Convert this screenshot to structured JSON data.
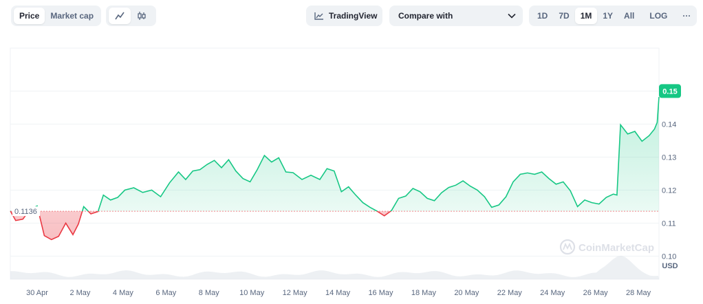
{
  "toolbar": {
    "type_tabs": [
      {
        "label": "Price",
        "active": true
      },
      {
        "label": "Market cap",
        "active": false
      }
    ],
    "chart_style_icons": [
      {
        "icon": "line-chart-icon",
        "active": true
      },
      {
        "icon": "candlestick-icon",
        "active": false
      }
    ],
    "tradingview_label": "TradingView",
    "compare_label": "Compare with",
    "ranges": [
      {
        "label": "1D",
        "active": false
      },
      {
        "label": "7D",
        "active": false
      },
      {
        "label": "1M",
        "active": true
      },
      {
        "label": "1Y",
        "active": false
      },
      {
        "label": "All",
        "active": false
      }
    ],
    "log_label": "LOG",
    "more_label": "···"
  },
  "watermark": "CoinMarketCap",
  "colors": {
    "up": "#16c784",
    "down": "#ea3943",
    "badge": "#16c784",
    "grid": "#eff2f5",
    "text": "#58667e"
  },
  "chart_data": {
    "type": "area",
    "currency_label": "USD",
    "baseline": 0.1136,
    "baseline_label": "0.1136",
    "current_price_label": "0.15",
    "ylim": [
      0.093,
      0.163
    ],
    "y_ticks": [
      0.1,
      0.11,
      0.12,
      0.13,
      0.14,
      0.15
    ],
    "y_tick_labels": [
      "0.10",
      "0.11",
      "0.12",
      "0.13",
      "0.14",
      "0.15"
    ],
    "x_start": "2024-04-28T18:00",
    "x_end": "2024-05-28T23:00",
    "x_ticks": [
      {
        "date": "2024-04-30",
        "label": "30 Apr"
      },
      {
        "date": "2024-05-02",
        "label": "2 May"
      },
      {
        "date": "2024-05-04",
        "label": "4 May"
      },
      {
        "date": "2024-05-06",
        "label": "6 May"
      },
      {
        "date": "2024-05-08",
        "label": "8 May"
      },
      {
        "date": "2024-05-10",
        "label": "10 May"
      },
      {
        "date": "2024-05-12",
        "label": "12 May"
      },
      {
        "date": "2024-05-14",
        "label": "14 May"
      },
      {
        "date": "2024-05-16",
        "label": "16 May"
      },
      {
        "date": "2024-05-18",
        "label": "18 May"
      },
      {
        "date": "2024-05-20",
        "label": "20 May"
      },
      {
        "date": "2024-05-22",
        "label": "22 May"
      },
      {
        "date": "2024-05-24",
        "label": "24 May"
      },
      {
        "date": "2024-05-26",
        "label": "26 May"
      },
      {
        "date": "2024-05-28",
        "label": "28 May"
      }
    ],
    "series": [
      {
        "points": [
          [
            "2024-04-28T18:00",
            0.1137
          ],
          [
            "2024-04-29T00:00",
            0.1108
          ],
          [
            "2024-04-29T08:00",
            0.1112
          ],
          [
            "2024-04-29T16:00",
            0.1141
          ],
          [
            "2024-04-30T00:00",
            0.1152
          ],
          [
            "2024-04-30T08:00",
            0.1062
          ],
          [
            "2024-04-30T16:00",
            0.105
          ],
          [
            "2024-05-01T00:00",
            0.106
          ],
          [
            "2024-05-01T08:00",
            0.11
          ],
          [
            "2024-05-01T16:00",
            0.1065
          ],
          [
            "2024-05-01T22:00",
            0.1097
          ],
          [
            "2024-05-02T04:00",
            0.115
          ],
          [
            "2024-05-02T12:00",
            0.1128
          ],
          [
            "2024-05-02T20:00",
            0.1135
          ],
          [
            "2024-05-03T02:00",
            0.1185
          ],
          [
            "2024-05-03T10:00",
            0.117
          ],
          [
            "2024-05-03T18:00",
            0.1178
          ],
          [
            "2024-05-04T02:00",
            0.12
          ],
          [
            "2024-05-04T12:00",
            0.1207
          ],
          [
            "2024-05-04T22:00",
            0.1193
          ],
          [
            "2024-05-05T08:00",
            0.12
          ],
          [
            "2024-05-05T18:00",
            0.118
          ],
          [
            "2024-05-06T04:00",
            0.1222
          ],
          [
            "2024-05-06T14:00",
            0.1255
          ],
          [
            "2024-05-06T22:00",
            0.1232
          ],
          [
            "2024-05-07T06:00",
            0.1258
          ],
          [
            "2024-05-07T14:00",
            0.1262
          ],
          [
            "2024-05-07T22:00",
            0.1278
          ],
          [
            "2024-05-08T06:00",
            0.129
          ],
          [
            "2024-05-08T14:00",
            0.1268
          ],
          [
            "2024-05-08T22:00",
            0.1292
          ],
          [
            "2024-05-09T06:00",
            0.1258
          ],
          [
            "2024-05-09T14:00",
            0.1235
          ],
          [
            "2024-05-09T22:00",
            0.1225
          ],
          [
            "2024-05-10T06:00",
            0.1262
          ],
          [
            "2024-05-10T14:00",
            0.1305
          ],
          [
            "2024-05-10T22:00",
            0.1285
          ],
          [
            "2024-05-11T06:00",
            0.1298
          ],
          [
            "2024-05-11T14:00",
            0.1255
          ],
          [
            "2024-05-11T22:00",
            0.1253
          ],
          [
            "2024-05-12T08:00",
            0.1232
          ],
          [
            "2024-05-12T18:00",
            0.1245
          ],
          [
            "2024-05-13T04:00",
            0.1232
          ],
          [
            "2024-05-13T12:00",
            0.1265
          ],
          [
            "2024-05-13T20:00",
            0.1258
          ],
          [
            "2024-05-14T04:00",
            0.1195
          ],
          [
            "2024-05-14T12:00",
            0.121
          ],
          [
            "2024-05-14T20:00",
            0.1185
          ],
          [
            "2024-05-15T04:00",
            0.1162
          ],
          [
            "2024-05-15T12:00",
            0.1148
          ],
          [
            "2024-05-15T20:00",
            0.1136
          ],
          [
            "2024-05-16T04:00",
            0.1122
          ],
          [
            "2024-05-16T12:00",
            0.1138
          ],
          [
            "2024-05-16T20:00",
            0.1175
          ],
          [
            "2024-05-17T04:00",
            0.1182
          ],
          [
            "2024-05-17T12:00",
            0.1205
          ],
          [
            "2024-05-17T20:00",
            0.1195
          ],
          [
            "2024-05-18T04:00",
            0.1175
          ],
          [
            "2024-05-18T12:00",
            0.1168
          ],
          [
            "2024-05-18T20:00",
            0.1192
          ],
          [
            "2024-05-19T04:00",
            0.1208
          ],
          [
            "2024-05-19T12:00",
            0.1215
          ],
          [
            "2024-05-19T20:00",
            0.1228
          ],
          [
            "2024-05-20T04:00",
            0.1212
          ],
          [
            "2024-05-20T12:00",
            0.12
          ],
          [
            "2024-05-20T20:00",
            0.118
          ],
          [
            "2024-05-21T04:00",
            0.1148
          ],
          [
            "2024-05-21T12:00",
            0.1155
          ],
          [
            "2024-05-21T20:00",
            0.118
          ],
          [
            "2024-05-22T04:00",
            0.1225
          ],
          [
            "2024-05-22T12:00",
            0.1248
          ],
          [
            "2024-05-22T20:00",
            0.1252
          ],
          [
            "2024-05-23T04:00",
            0.1248
          ],
          [
            "2024-05-23T12:00",
            0.1255
          ],
          [
            "2024-05-23T20:00",
            0.1235
          ],
          [
            "2024-05-24T04:00",
            0.1218
          ],
          [
            "2024-05-24T12:00",
            0.1225
          ],
          [
            "2024-05-24T20:00",
            0.1198
          ],
          [
            "2024-05-25T04:00",
            0.115
          ],
          [
            "2024-05-25T12:00",
            0.117
          ],
          [
            "2024-05-25T20:00",
            0.1162
          ],
          [
            "2024-05-26T04:00",
            0.1158
          ],
          [
            "2024-05-26T12:00",
            0.1178
          ],
          [
            "2024-05-26T20:00",
            0.1188
          ],
          [
            "2024-05-27T00:00",
            0.1185
          ],
          [
            "2024-05-27T04:00",
            0.1398
          ],
          [
            "2024-05-27T12:00",
            0.137
          ],
          [
            "2024-05-27T20:00",
            0.1378
          ],
          [
            "2024-05-28T04:00",
            0.1348
          ],
          [
            "2024-05-28T12:00",
            0.1365
          ],
          [
            "2024-05-28T18:00",
            0.1385
          ],
          [
            "2024-05-28T21:00",
            0.1405
          ],
          [
            "2024-05-28T23:00",
            0.1482
          ]
        ]
      }
    ]
  }
}
